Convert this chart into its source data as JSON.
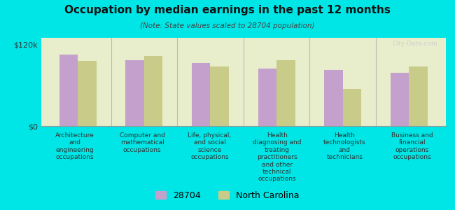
{
  "title": "Occupation by median earnings in the past 12 months",
  "subtitle": "(Note: State values scaled to 28704 population)",
  "background_color": "#00e5e5",
  "plot_bg_color": "#e8edcc",
  "categories": [
    "Architecture\nand\nengineering\noccupations",
    "Computer and\nmathematical\noccupations",
    "Life, physical,\nand social\nscience\noccupations",
    "Health\ndiagnosing and\ntreating\npractitioners\nand other\ntechnical\noccupations",
    "Health\ntechnologists\nand\ntechnicians",
    "Business and\nfinancial\noperations\noccupations"
  ],
  "values_28704": [
    105000,
    97000,
    93000,
    85000,
    83000,
    78000
  ],
  "values_nc": [
    96000,
    103000,
    88000,
    97000,
    55000,
    88000
  ],
  "color_28704": "#c4a0cc",
  "color_nc": "#c8cc88",
  "ylim": [
    0,
    130000
  ],
  "ytick_pos": [
    0,
    120000
  ],
  "ytick_labels": [
    "$0",
    "$120k"
  ],
  "legend_label_28704": "28704",
  "legend_label_nc": "North Carolina",
  "watermark": "City-Data.com"
}
